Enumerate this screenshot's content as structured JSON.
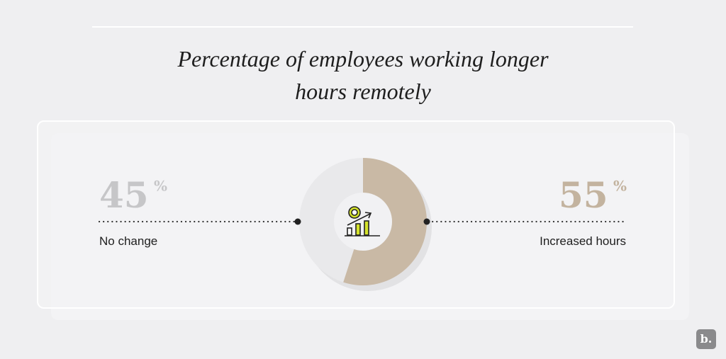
{
  "chart_data": {
    "type": "donut",
    "title": "Percentage of employees working longer hours remotely",
    "categories": [
      "No change",
      "Increased hours"
    ],
    "values": [
      45,
      55
    ],
    "unit": "%",
    "colors": [
      "#e9e9eb",
      "#c9b9a5"
    ],
    "label_colors": [
      "#c6c6c8",
      "#c3b39f"
    ]
  },
  "logo": "b."
}
